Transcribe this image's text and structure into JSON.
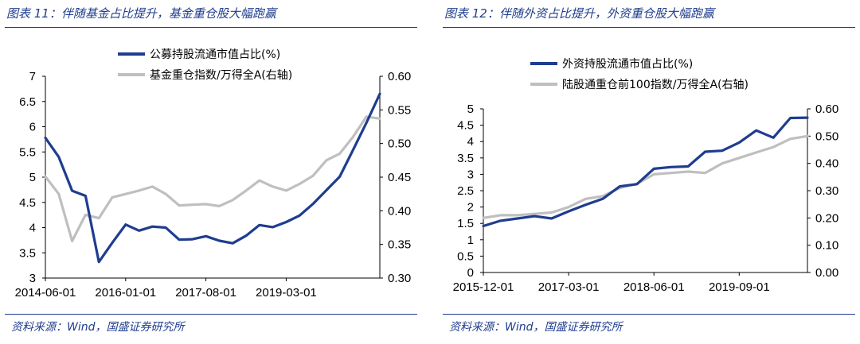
{
  "left": {
    "title": "图表 11：伴随基金占比提升，基金重仓股大幅跑赢",
    "source": "资料来源：Wind，国盛证券研究所"
  },
  "right": {
    "title": "图表 12：伴随外资占比提升，外资重仓股大幅跑赢",
    "source": "资料来源：Wind，国盛证券研究所"
  },
  "chart_data": [
    {
      "type": "line",
      "title": "",
      "x_tick_labels": [
        "2014-06-01",
        "2016-01-01",
        "2017-08-01",
        "2019-03-01"
      ],
      "x_tick_index": [
        0,
        6,
        12,
        18
      ],
      "ylim_left": [
        3,
        7
      ],
      "yticks_left": [
        "3",
        "3.5",
        "4",
        "4.5",
        "5",
        "5.5",
        "6",
        "6.5",
        "7"
      ],
      "ylim_right": [
        0.3,
        0.6
      ],
      "yticks_right": [
        "0.30",
        "0.35",
        "0.40",
        "0.45",
        "0.50",
        "0.55",
        "0.60"
      ],
      "legend_position": "top-center",
      "grid": false,
      "series": [
        {
          "name": "公募持股流通市值占比(%)",
          "axis": "left",
          "color": "#1f3d8f",
          "values": [
            5.78,
            5.4,
            4.73,
            4.63,
            3.32,
            3.7,
            4.06,
            3.94,
            4.02,
            4.0,
            3.76,
            3.77,
            3.83,
            3.74,
            3.69,
            3.84,
            4.05,
            4.01,
            4.11,
            4.24,
            4.47,
            4.74,
            5.01,
            5.54,
            6.08,
            6.65
          ]
        },
        {
          "name": "基金重仓指数/万得全A(右轴)",
          "axis": "right",
          "color": "#bfbfbf",
          "values": [
            0.451,
            0.425,
            0.355,
            0.394,
            0.389,
            0.42,
            0.425,
            0.43,
            0.436,
            0.425,
            0.408,
            0.409,
            0.41,
            0.407,
            0.416,
            0.43,
            0.445,
            0.436,
            0.43,
            0.44,
            0.452,
            0.475,
            0.485,
            0.51,
            0.54,
            0.537
          ]
        }
      ]
    },
    {
      "type": "line",
      "title": "",
      "x_tick_labels": [
        "2015-12-01",
        "2017-03-01",
        "2018-06-01",
        "2019-09-01"
      ],
      "x_tick_index": [
        0,
        5,
        10,
        15
      ],
      "ylim_left": [
        0,
        5
      ],
      "yticks_left": [
        "0",
        "0.5",
        "1",
        "1.5",
        "2",
        "2.5",
        "3",
        "3.5",
        "4",
        "4.5",
        "5"
      ],
      "ylim_right": [
        0.0,
        0.6
      ],
      "yticks_right": [
        "0.00",
        "0.10",
        "0.20",
        "0.30",
        "0.40",
        "0.50",
        "0.60"
      ],
      "legend_position": "top-center",
      "grid": false,
      "series": [
        {
          "name": "外资持股流通市值占比(%)",
          "axis": "left",
          "color": "#1f3d8f",
          "values": [
            1.42,
            1.58,
            1.65,
            1.72,
            1.65,
            1.87,
            2.07,
            2.25,
            2.63,
            2.7,
            3.17,
            3.22,
            3.24,
            3.69,
            3.72,
            3.97,
            4.34,
            4.12,
            4.72,
            4.73
          ]
        },
        {
          "name": "陆股通重仓前100指数/万得全A(右轴)",
          "axis": "right",
          "color": "#bfbfbf",
          "values": [
            0.2,
            0.21,
            0.21,
            0.215,
            0.22,
            0.24,
            0.27,
            0.28,
            0.31,
            0.325,
            0.36,
            0.365,
            0.37,
            0.365,
            0.4,
            0.42,
            0.44,
            0.46,
            0.49,
            0.5
          ]
        }
      ]
    }
  ]
}
